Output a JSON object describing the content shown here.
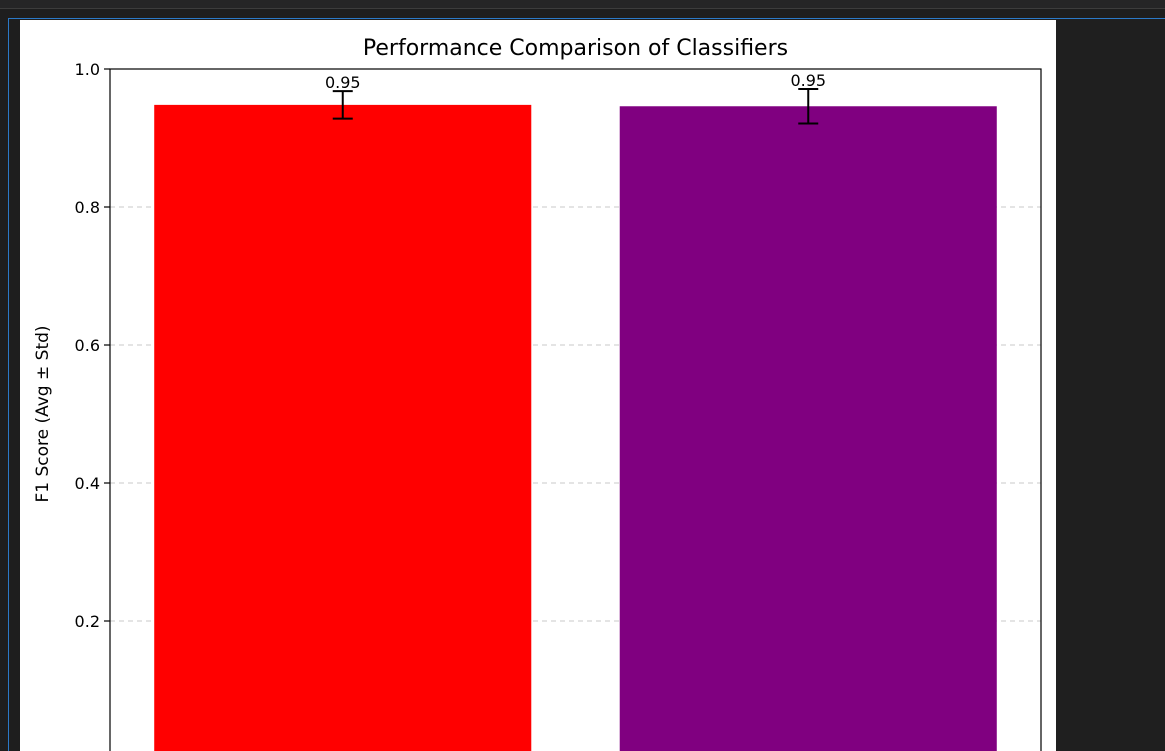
{
  "chart_data": {
    "type": "bar",
    "title": "Performance Comparison of Classifiers",
    "ylabel": "F1 Score (Avg ± Std)",
    "xlabel": "",
    "ylim": [
      0,
      1.0
    ],
    "yticks": [
      0.2,
      0.4,
      0.6,
      0.8,
      1.0
    ],
    "ytick_labels": [
      "0.2",
      "0.4",
      "0.6",
      "0.8",
      "1.0"
    ],
    "grid": "y-dashed",
    "bars": [
      {
        "value": 0.948,
        "error": 0.02,
        "label": "0.95",
        "color": "#ff0000"
      },
      {
        "value": 0.946,
        "error": 0.025,
        "label": "0.95",
        "color": "#800080"
      }
    ]
  }
}
